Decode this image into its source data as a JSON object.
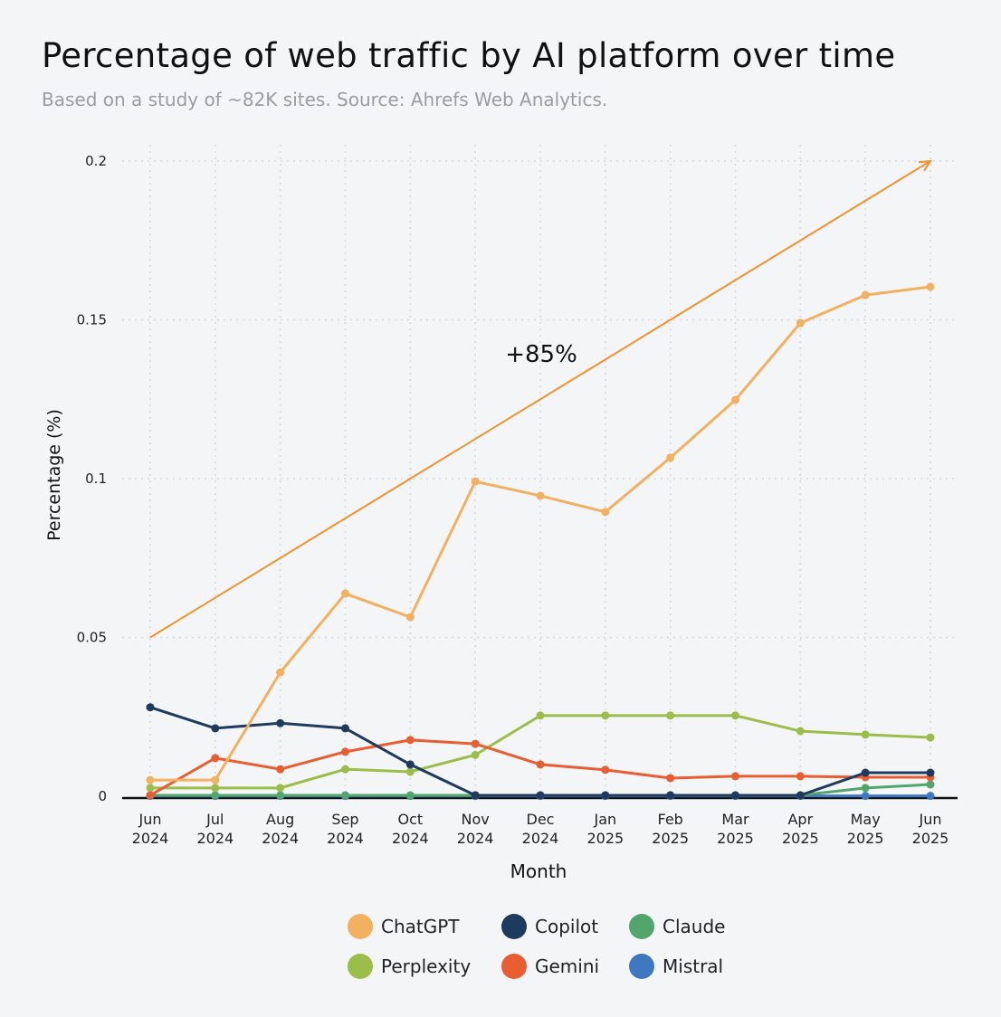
{
  "chart_data": {
    "type": "line",
    "title": "Percentage of web traffic by AI platform over time",
    "subtitle": "Based on a study of ~82K sites. Source: Ahrefs Web Analytics.",
    "xlabel": "Month",
    "ylabel": "Percentage (%)",
    "ylim": [
      0,
      0.2
    ],
    "yticks": [
      "0",
      "0.05",
      "0.1",
      "0.15",
      "0.2"
    ],
    "grid": true,
    "legend_position": "bottom",
    "categories": [
      [
        "Jun",
        "2024"
      ],
      [
        "Jul",
        "2024"
      ],
      [
        "Aug",
        "2024"
      ],
      [
        "Sep",
        "2024"
      ],
      [
        "Oct",
        "2024"
      ],
      [
        "Nov",
        "2024"
      ],
      [
        "Dec",
        "2024"
      ],
      [
        "Jan",
        "2025"
      ],
      [
        "Feb",
        "2025"
      ],
      [
        "Mar",
        "2025"
      ],
      [
        "Apr",
        "2025"
      ],
      [
        "May",
        "2025"
      ],
      [
        "Jun",
        "2025"
      ]
    ],
    "series": [
      {
        "name": "ChatGPT",
        "color": "#f2b061",
        "values": [
          0.0051,
          0.0051,
          0.039,
          0.0638,
          0.0564,
          0.0991,
          0.0946,
          0.0895,
          0.1066,
          0.1248,
          0.149,
          0.1578,
          0.1604
        ]
      },
      {
        "name": "Copilot",
        "color": "#1e3a5f",
        "values": [
          0.028,
          0.0214,
          0.023,
          0.0214,
          0.01,
          0.0003,
          0.0003,
          0.0003,
          0.0003,
          0.0003,
          0.0003,
          0.0074,
          0.0074
        ]
      },
      {
        "name": "Claude",
        "color": "#52a56c",
        "values": [
          0.0003,
          0.0003,
          0.0003,
          0.0003,
          0.0003,
          0.0003,
          0.0003,
          0.0003,
          0.0003,
          0.0003,
          0.0003,
          0.0026,
          0.0037
        ]
      },
      {
        "name": "Perplexity",
        "color": "#9bbd4a",
        "values": [
          0.0026,
          0.0026,
          0.0026,
          0.0085,
          0.0077,
          0.013,
          0.0254,
          0.0254,
          0.0254,
          0.0254,
          0.0205,
          0.0194,
          0.0185
        ]
      },
      {
        "name": "Gemini",
        "color": "#e85d31",
        "values": [
          0.0003,
          0.012,
          0.0085,
          0.014,
          0.0177,
          0.0165,
          0.01,
          0.0083,
          0.0057,
          0.0063,
          0.0063,
          0.006,
          0.006
        ]
      },
      {
        "name": "Mistral",
        "color": "#3e78c0",
        "values": [
          0.0001,
          0.0001,
          0.0001,
          0.0001,
          0.0001,
          0.0001,
          0.0001,
          0.0001,
          0.0001,
          0.0001,
          0.0001,
          0.0001,
          0.0001
        ]
      }
    ],
    "annotation": {
      "text": "+85%",
      "arrow_from": {
        "x": "Jun 2024",
        "y": 0.05
      },
      "arrow_to": {
        "x": "Jun 2025",
        "y": 0.2
      },
      "color": "#f0922e"
    }
  }
}
